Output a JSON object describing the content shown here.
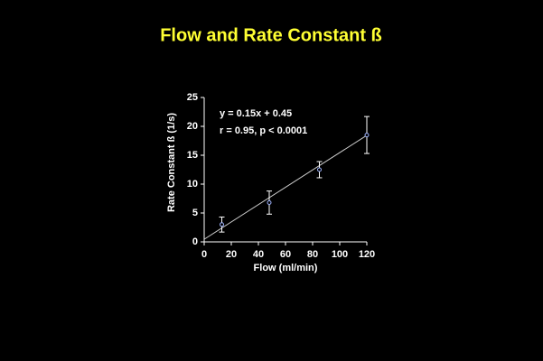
{
  "chart_data": {
    "type": "scatter",
    "title": "Flow and Rate Constant ß",
    "x_label": "Flow (ml/min)",
    "y_label": "Rate Constant ß (1/s)",
    "annotations": [
      "y = 0.15x + 0.45",
      "r = 0.95, p < 0.0001"
    ],
    "x": [
      13,
      48,
      85,
      120
    ],
    "values": [
      3.0,
      6.8,
      12.5,
      18.5
    ],
    "errors": [
      1.3,
      2.0,
      1.4,
      3.2
    ],
    "trendline": {
      "slope": 0.15,
      "intercept": 0.45
    },
    "xlim": [
      0,
      120
    ],
    "xticks": [
      0,
      20,
      40,
      60,
      80,
      100,
      120
    ],
    "ylim": [
      0,
      25
    ],
    "yticks": [
      0,
      5,
      10,
      15,
      20,
      25
    ],
    "color": "#9fb4ff",
    "title_color": "#ffff33"
  }
}
